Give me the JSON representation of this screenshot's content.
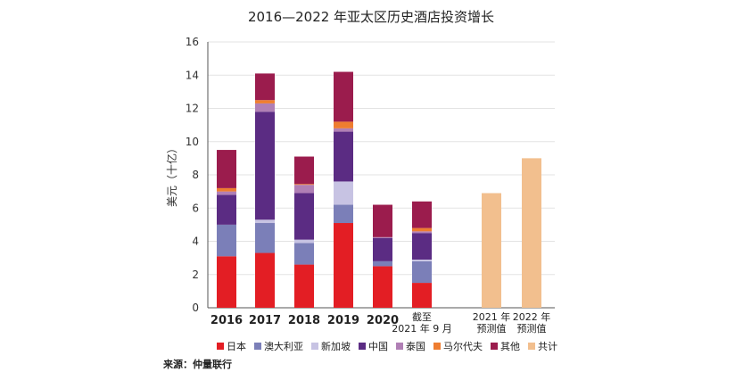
{
  "chart_data": {
    "type": "bar",
    "stacked": true,
    "title": "2016—2022 年亚太区历史酒店投资增长",
    "ylabel": "美元（十亿）",
    "xlabel": "",
    "ylim": [
      0,
      16
    ],
    "yticks": [
      0,
      2,
      4,
      6,
      8,
      10,
      12,
      14,
      16
    ],
    "grid": true,
    "categories": [
      {
        "line1": "2016",
        "line2": ""
      },
      {
        "line1": "2017",
        "line2": ""
      },
      {
        "line1": "2018",
        "line2": ""
      },
      {
        "line1": "2019",
        "line2": ""
      },
      {
        "line1": "2020",
        "line2": ""
      },
      {
        "line1": "截至",
        "line2": "2021 年 9 月"
      },
      {
        "line1": "2021 年",
        "line2": "预测值"
      },
      {
        "line1": "2022 年",
        "line2": "预测值"
      }
    ],
    "series": [
      {
        "name": "日本",
        "color": "#e31e24",
        "values": [
          3.1,
          3.3,
          2.6,
          5.1,
          2.5,
          1.5,
          0,
          0
        ]
      },
      {
        "name": "澳大利亚",
        "color": "#7b7fb8",
        "values": [
          1.9,
          1.8,
          1.3,
          1.1,
          0.3,
          1.3,
          0,
          0
        ]
      },
      {
        "name": "新加坡",
        "color": "#c7c3e3",
        "values": [
          0,
          0.2,
          0.2,
          1.4,
          0,
          0.1,
          0,
          0
        ]
      },
      {
        "name": "中国",
        "color": "#5b2c83",
        "values": [
          1.8,
          6.5,
          2.8,
          3.0,
          1.4,
          1.6,
          0,
          0
        ]
      },
      {
        "name": "泰国",
        "color": "#b07fb5",
        "values": [
          0.2,
          0.5,
          0.5,
          0.2,
          0.05,
          0.1,
          0,
          0
        ]
      },
      {
        "name": "马尔代夫",
        "color": "#ee7d30",
        "values": [
          0.2,
          0.2,
          0.05,
          0.4,
          0,
          0.2,
          0,
          0
        ]
      },
      {
        "name": "其他",
        "color": "#9b1c4d",
        "values": [
          2.3,
          1.6,
          1.65,
          3.0,
          1.95,
          1.6,
          0,
          0
        ]
      },
      {
        "name": "共计",
        "color": "#f2bf8e",
        "values": [
          0,
          0,
          0,
          0,
          0,
          0,
          6.9,
          9.0
        ]
      }
    ]
  },
  "source": {
    "text": "来源：仲量联行"
  },
  "colors": {
    "grid": "#e3e3e3",
    "axis": "#555555"
  }
}
